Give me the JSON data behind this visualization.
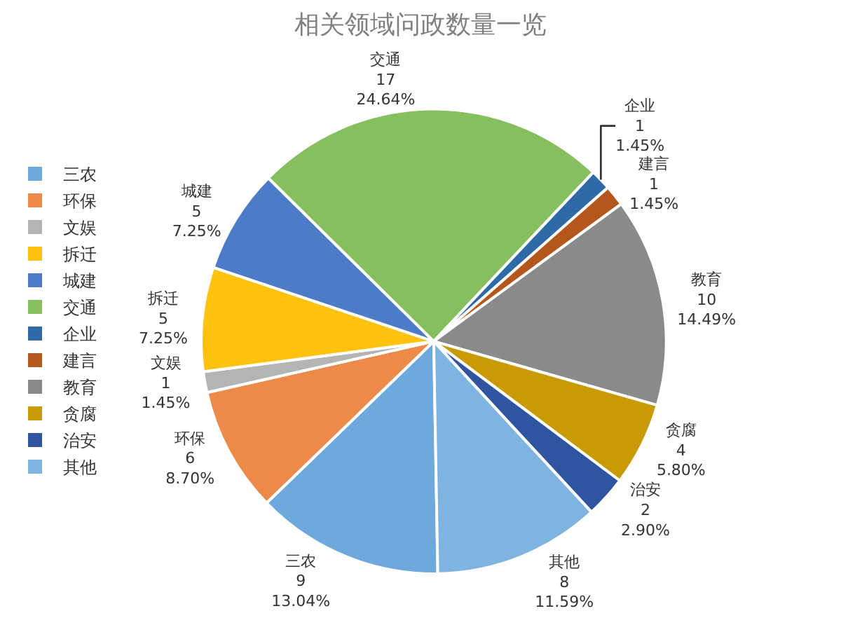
{
  "chart_data": {
    "type": "pie",
    "title": "相关领域问政数量一览",
    "categories": [
      "三农",
      "环保",
      "文娱",
      "拆迁",
      "城建",
      "交通",
      "企业",
      "建言",
      "教育",
      "贪腐",
      "治安",
      "其他"
    ],
    "values": [
      9,
      6,
      1,
      5,
      5,
      17,
      1,
      1,
      10,
      4,
      2,
      8
    ],
    "colors": [
      "#6fa8dc",
      "#ed8a4a",
      "#b4b4b4",
      "#ffc20e",
      "#4e7bc8",
      "#86bf5e",
      "#2e6aa8",
      "#b5561c",
      "#8a8a8a",
      "#c99a06",
      "#2f55a0",
      "#7fb3e0"
    ],
    "value_labels": [
      "9\n13.04%",
      "6\n8.70%",
      "1\n1.45%",
      "5\n7.25%",
      "5\n7.25%",
      "17\n24.64%",
      "1\n1.45%",
      "1\n1.45%",
      "10\n14.49%",
      "4\n5.80%",
      "2\n2.90%",
      "8\n11.59%"
    ],
    "legend": "left"
  }
}
